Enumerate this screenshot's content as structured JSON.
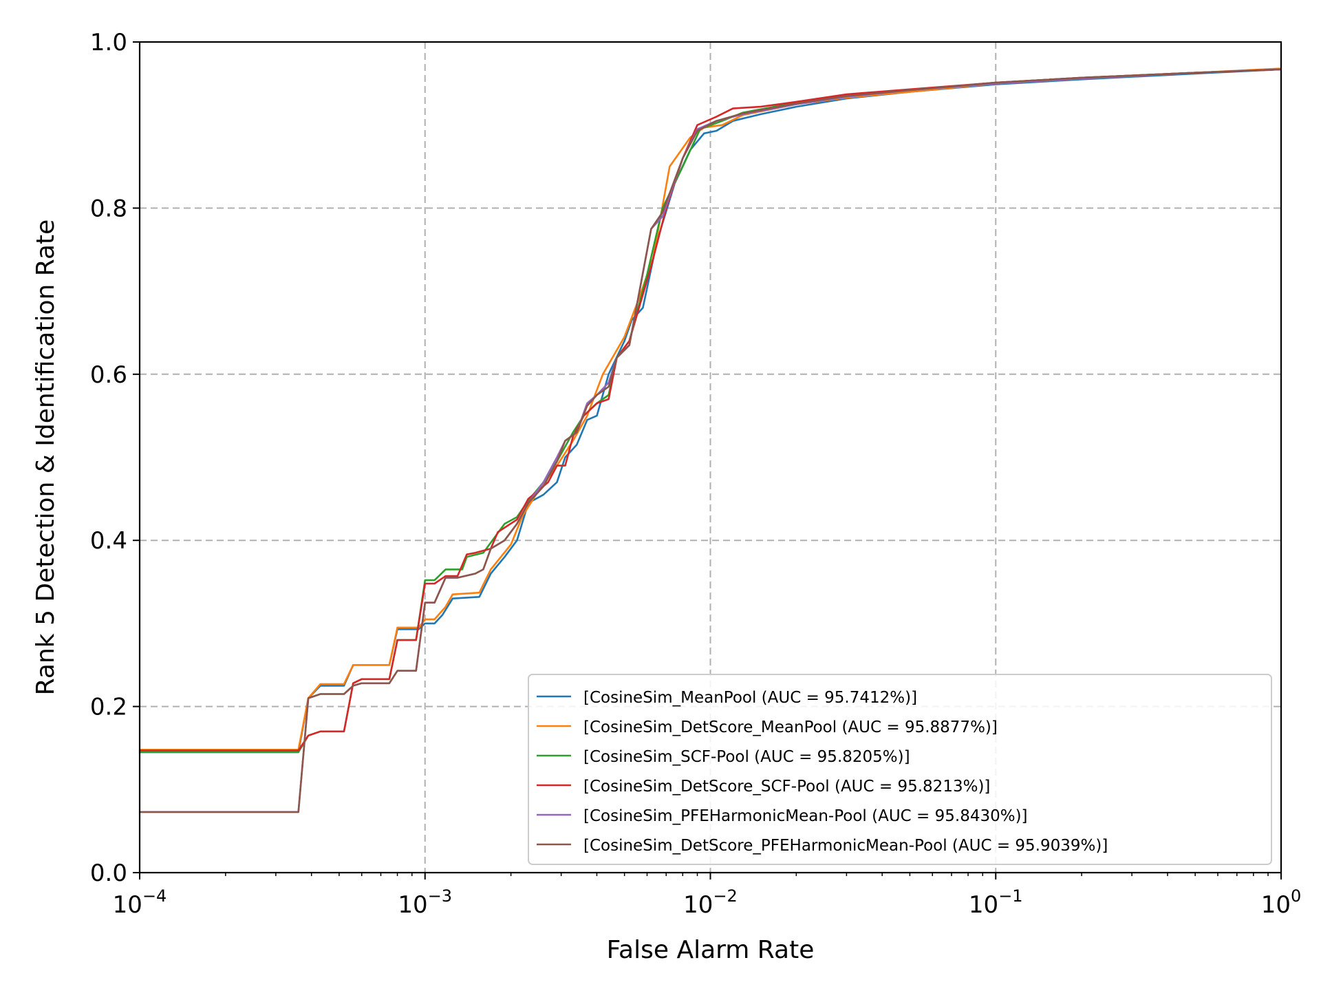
{
  "chart_data": {
    "type": "line",
    "xlabel": "False Alarm Rate",
    "ylabel": "Rank 5 Detection & Identification Rate",
    "xscale": "log",
    "xlim": [
      0.0001,
      1
    ],
    "ylim": [
      0.0,
      1.0
    ],
    "x_ticks": [
      {
        "value": 0.0001,
        "base": "10",
        "exp": "−4"
      },
      {
        "value": 0.001,
        "base": "10",
        "exp": "−3"
      },
      {
        "value": 0.01,
        "base": "10",
        "exp": "−2"
      },
      {
        "value": 0.1,
        "base": "10",
        "exp": "−1"
      },
      {
        "value": 1,
        "base": "10",
        "exp": "0"
      }
    ],
    "y_ticks": [
      "0.0",
      "0.2",
      "0.4",
      "0.6",
      "0.8",
      "1.0"
    ],
    "grid": true,
    "legend_position": "lower-right",
    "series": [
      {
        "name": "[CosineSim_MeanPool (AUC = 95.7412%)]",
        "color": "#1f77b4",
        "points": [
          [
            0.0001,
            0.145
          ],
          [
            0.00036,
            0.145
          ],
          [
            0.00039,
            0.21
          ],
          [
            0.00043,
            0.225
          ],
          [
            0.00052,
            0.225
          ],
          [
            0.00056,
            0.25
          ],
          [
            0.00075,
            0.25
          ],
          [
            0.0008,
            0.293
          ],
          [
            0.00095,
            0.293
          ],
          [
            0.001,
            0.3
          ],
          [
            0.00108,
            0.3
          ],
          [
            0.00115,
            0.31
          ],
          [
            0.00125,
            0.33
          ],
          [
            0.00155,
            0.332
          ],
          [
            0.0017,
            0.36
          ],
          [
            0.0019,
            0.38
          ],
          [
            0.0021,
            0.4
          ],
          [
            0.0023,
            0.445
          ],
          [
            0.0026,
            0.455
          ],
          [
            0.0029,
            0.47
          ],
          [
            0.0031,
            0.5
          ],
          [
            0.0034,
            0.515
          ],
          [
            0.0037,
            0.545
          ],
          [
            0.004,
            0.55
          ],
          [
            0.0044,
            0.6
          ],
          [
            0.005,
            0.64
          ],
          [
            0.0053,
            0.665
          ],
          [
            0.0058,
            0.68
          ],
          [
            0.0065,
            0.76
          ],
          [
            0.0075,
            0.83
          ],
          [
            0.0085,
            0.87
          ],
          [
            0.0095,
            0.89
          ],
          [
            0.0105,
            0.893
          ],
          [
            0.012,
            0.905
          ],
          [
            0.015,
            0.913
          ],
          [
            0.02,
            0.922
          ],
          [
            0.03,
            0.932
          ],
          [
            0.05,
            0.94
          ],
          [
            0.1,
            0.949
          ],
          [
            0.2,
            0.955
          ],
          [
            0.5,
            0.962
          ],
          [
            1,
            0.967
          ]
        ]
      },
      {
        "name": "[CosineSim_DetScore_MeanPool (AUC = 95.8877%)]",
        "color": "#ff7f0e",
        "points": [
          [
            0.0001,
            0.148
          ],
          [
            0.00036,
            0.148
          ],
          [
            0.00039,
            0.21
          ],
          [
            0.00043,
            0.227
          ],
          [
            0.00052,
            0.227
          ],
          [
            0.00056,
            0.25
          ],
          [
            0.00075,
            0.25
          ],
          [
            0.0008,
            0.295
          ],
          [
            0.00095,
            0.295
          ],
          [
            0.001,
            0.305
          ],
          [
            0.00108,
            0.305
          ],
          [
            0.00118,
            0.32
          ],
          [
            0.00125,
            0.335
          ],
          [
            0.00155,
            0.337
          ],
          [
            0.0017,
            0.365
          ],
          [
            0.002,
            0.395
          ],
          [
            0.0022,
            0.43
          ],
          [
            0.0025,
            0.46
          ],
          [
            0.0029,
            0.49
          ],
          [
            0.0033,
            0.52
          ],
          [
            0.0037,
            0.55
          ],
          [
            0.0042,
            0.6
          ],
          [
            0.005,
            0.645
          ],
          [
            0.0056,
            0.69
          ],
          [
            0.0063,
            0.74
          ],
          [
            0.0072,
            0.85
          ],
          [
            0.0085,
            0.885
          ],
          [
            0.0095,
            0.897
          ],
          [
            0.011,
            0.9
          ],
          [
            0.013,
            0.912
          ],
          [
            0.02,
            0.925
          ],
          [
            0.03,
            0.933
          ],
          [
            0.05,
            0.94
          ],
          [
            0.1,
            0.95
          ],
          [
            0.2,
            0.956
          ],
          [
            0.5,
            0.963
          ],
          [
            1,
            0.968
          ]
        ]
      },
      {
        "name": "[CosineSim_SCF-Pool (AUC = 95.8205%)]",
        "color": "#2ca02c",
        "points": [
          [
            0.0001,
            0.145
          ],
          [
            0.00036,
            0.145
          ],
          [
            0.00039,
            0.165
          ],
          [
            0.00043,
            0.17
          ],
          [
            0.00052,
            0.17
          ],
          [
            0.00056,
            0.228
          ],
          [
            0.0006,
            0.233
          ],
          [
            0.00075,
            0.233
          ],
          [
            0.0008,
            0.28
          ],
          [
            0.00093,
            0.28
          ],
          [
            0.001,
            0.352
          ],
          [
            0.00108,
            0.352
          ],
          [
            0.00118,
            0.365
          ],
          [
            0.00135,
            0.365
          ],
          [
            0.0014,
            0.38
          ],
          [
            0.0016,
            0.385
          ],
          [
            0.0019,
            0.42
          ],
          [
            0.0021,
            0.428
          ],
          [
            0.0023,
            0.448
          ],
          [
            0.0026,
            0.47
          ],
          [
            0.0029,
            0.495
          ],
          [
            0.0033,
            0.53
          ],
          [
            0.0036,
            0.55
          ],
          [
            0.004,
            0.565
          ],
          [
            0.0044,
            0.575
          ],
          [
            0.0047,
            0.62
          ],
          [
            0.0052,
            0.64
          ],
          [
            0.006,
            0.72
          ],
          [
            0.0068,
            0.8
          ],
          [
            0.008,
            0.85
          ],
          [
            0.0092,
            0.895
          ],
          [
            0.011,
            0.905
          ],
          [
            0.013,
            0.915
          ],
          [
            0.02,
            0.927
          ],
          [
            0.03,
            0.935
          ],
          [
            0.05,
            0.942
          ],
          [
            0.1,
            0.951
          ],
          [
            0.2,
            0.957
          ],
          [
            0.5,
            0.963
          ],
          [
            1,
            0.967
          ]
        ]
      },
      {
        "name": "[CosineSim_DetScore_SCF-Pool (AUC = 95.8213%)]",
        "color": "#d62728",
        "points": [
          [
            0.0001,
            0.147
          ],
          [
            0.00036,
            0.147
          ],
          [
            0.00039,
            0.165
          ],
          [
            0.00043,
            0.17
          ],
          [
            0.00052,
            0.17
          ],
          [
            0.00056,
            0.228
          ],
          [
            0.0006,
            0.233
          ],
          [
            0.00075,
            0.233
          ],
          [
            0.0008,
            0.28
          ],
          [
            0.00093,
            0.28
          ],
          [
            0.001,
            0.348
          ],
          [
            0.00108,
            0.348
          ],
          [
            0.00118,
            0.357
          ],
          [
            0.0013,
            0.357
          ],
          [
            0.0014,
            0.383
          ],
          [
            0.0015,
            0.385
          ],
          [
            0.0017,
            0.39
          ],
          [
            0.0018,
            0.41
          ],
          [
            0.0021,
            0.425
          ],
          [
            0.0023,
            0.45
          ],
          [
            0.0027,
            0.47
          ],
          [
            0.0029,
            0.49
          ],
          [
            0.0031,
            0.49
          ],
          [
            0.0033,
            0.525
          ],
          [
            0.0036,
            0.55
          ],
          [
            0.004,
            0.565
          ],
          [
            0.0044,
            0.57
          ],
          [
            0.0047,
            0.62
          ],
          [
            0.0052,
            0.64
          ],
          [
            0.0062,
            0.73
          ],
          [
            0.007,
            0.8
          ],
          [
            0.008,
            0.86
          ],
          [
            0.009,
            0.9
          ],
          [
            0.0105,
            0.91
          ],
          [
            0.012,
            0.92
          ],
          [
            0.015,
            0.922
          ],
          [
            0.02,
            0.928
          ],
          [
            0.03,
            0.937
          ],
          [
            0.05,
            0.943
          ],
          [
            0.1,
            0.951
          ],
          [
            0.2,
            0.957
          ],
          [
            0.5,
            0.963
          ],
          [
            1,
            0.967
          ]
        ]
      },
      {
        "name": "[CosineSim_PFEHarmonicMean-Pool (AUC = 95.8430%)]",
        "color": "#9467bd",
        "points": [
          [
            0.0001,
            0.073
          ],
          [
            0.00036,
            0.073
          ],
          [
            0.00039,
            0.21
          ],
          [
            0.00043,
            0.215
          ],
          [
            0.00052,
            0.215
          ],
          [
            0.00056,
            0.225
          ],
          [
            0.0006,
            0.228
          ],
          [
            0.00075,
            0.228
          ],
          [
            0.0008,
            0.243
          ],
          [
            0.00093,
            0.243
          ],
          [
            0.001,
            0.325
          ],
          [
            0.00108,
            0.325
          ],
          [
            0.00118,
            0.355
          ],
          [
            0.0013,
            0.355
          ],
          [
            0.0015,
            0.36
          ],
          [
            0.0016,
            0.365
          ],
          [
            0.0017,
            0.39
          ],
          [
            0.0019,
            0.4
          ],
          [
            0.0021,
            0.42
          ],
          [
            0.0023,
            0.445
          ],
          [
            0.0026,
            0.47
          ],
          [
            0.0029,
            0.5
          ],
          [
            0.0031,
            0.52
          ],
          [
            0.0034,
            0.53
          ],
          [
            0.0037,
            0.565
          ],
          [
            0.004,
            0.575
          ],
          [
            0.0044,
            0.59
          ],
          [
            0.0047,
            0.62
          ],
          [
            0.0052,
            0.635
          ],
          [
            0.0062,
            0.775
          ],
          [
            0.0068,
            0.79
          ],
          [
            0.008,
            0.86
          ],
          [
            0.009,
            0.895
          ],
          [
            0.0105,
            0.905
          ],
          [
            0.013,
            0.913
          ],
          [
            0.02,
            0.925
          ],
          [
            0.03,
            0.934
          ],
          [
            0.05,
            0.942
          ],
          [
            0.1,
            0.95
          ],
          [
            0.2,
            0.956
          ],
          [
            0.5,
            0.963
          ],
          [
            1,
            0.967
          ]
        ]
      },
      {
        "name": "[CosineSim_DetScore_PFEHarmonicMean-Pool (AUC = 95.9039%)]",
        "color": "#8c564b",
        "points": [
          [
            0.0001,
            0.073
          ],
          [
            0.00036,
            0.073
          ],
          [
            0.00039,
            0.21
          ],
          [
            0.00043,
            0.215
          ],
          [
            0.00052,
            0.215
          ],
          [
            0.00056,
            0.225
          ],
          [
            0.0006,
            0.228
          ],
          [
            0.00075,
            0.228
          ],
          [
            0.0008,
            0.243
          ],
          [
            0.00093,
            0.243
          ],
          [
            0.001,
            0.325
          ],
          [
            0.00108,
            0.325
          ],
          [
            0.00118,
            0.355
          ],
          [
            0.0013,
            0.355
          ],
          [
            0.0015,
            0.36
          ],
          [
            0.0016,
            0.365
          ],
          [
            0.0017,
            0.39
          ],
          [
            0.0019,
            0.4
          ],
          [
            0.0021,
            0.42
          ],
          [
            0.0023,
            0.445
          ],
          [
            0.0026,
            0.465
          ],
          [
            0.0029,
            0.495
          ],
          [
            0.0031,
            0.52
          ],
          [
            0.0034,
            0.53
          ],
          [
            0.0037,
            0.562
          ],
          [
            0.004,
            0.575
          ],
          [
            0.0044,
            0.585
          ],
          [
            0.0047,
            0.62
          ],
          [
            0.0052,
            0.635
          ],
          [
            0.0062,
            0.775
          ],
          [
            0.0068,
            0.795
          ],
          [
            0.008,
            0.86
          ],
          [
            0.009,
            0.893
          ],
          [
            0.0105,
            0.905
          ],
          [
            0.013,
            0.914
          ],
          [
            0.02,
            0.926
          ],
          [
            0.03,
            0.935
          ],
          [
            0.05,
            0.942
          ],
          [
            0.1,
            0.951
          ],
          [
            0.2,
            0.957
          ],
          [
            0.5,
            0.963
          ],
          [
            1,
            0.967
          ]
        ]
      }
    ]
  }
}
